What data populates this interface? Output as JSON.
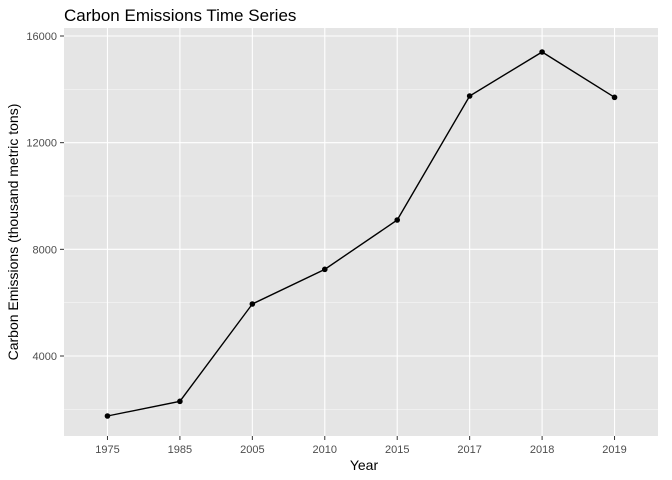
{
  "chart_data": {
    "type": "line",
    "title": "Carbon Emissions Time Series",
    "xlabel": "Year",
    "ylabel": "Carbon Emissions (thousand metric tons)",
    "categories": [
      "1975",
      "1985",
      "2005",
      "2010",
      "2015",
      "2017",
      "2018",
      "2019"
    ],
    "values": [
      1750,
      2300,
      5950,
      7250,
      9100,
      13750,
      15400,
      13700
    ],
    "ylim": [
      1000,
      16300
    ],
    "yticks": [
      4000,
      8000,
      12000,
      16000
    ],
    "ytick_labels": [
      "4000",
      "8000",
      "12000",
      "16000"
    ],
    "grid": true,
    "colors": {
      "panel": "#e5e5e5",
      "grid": "#ffffff",
      "line": "#000000",
      "point": "#000000"
    }
  }
}
